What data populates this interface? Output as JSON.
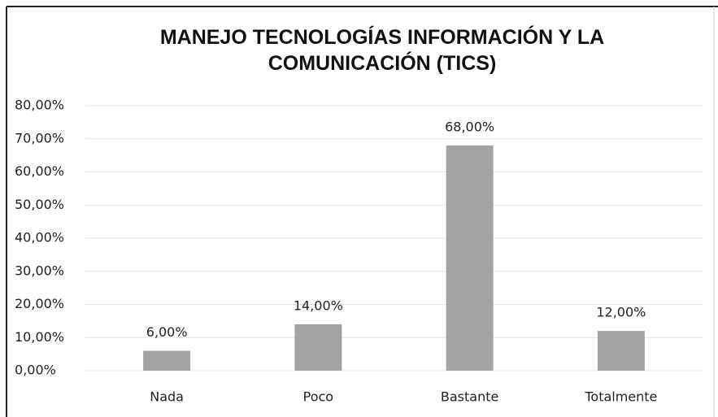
{
  "chart_data": {
    "type": "bar",
    "title": "MANEJO TECNOLOGÍAS INFORMACIÓN Y LA COMUNICACIÓN (TICS)",
    "categories": [
      "Nada",
      "Poco",
      "Bastante",
      "Totalmente"
    ],
    "values": [
      6,
      14,
      68,
      12
    ],
    "value_labels": [
      "6,00%",
      "14,00%",
      "68,00%",
      "12,00%"
    ],
    "color": "#a3a3a3",
    "ylim": [
      0,
      80
    ],
    "yticks": [
      {
        "value": 0,
        "label": "0,00%"
      },
      {
        "value": 10,
        "label": "10,00%"
      },
      {
        "value": 20,
        "label": "20,00%"
      },
      {
        "value": 30,
        "label": "30,00%"
      },
      {
        "value": 40,
        "label": "40,00%"
      },
      {
        "value": 50,
        "label": "50,00%"
      },
      {
        "value": 60,
        "label": "60,00%"
      },
      {
        "value": 70,
        "label": "70,00%"
      },
      {
        "value": 80,
        "label": "80,00%"
      }
    ],
    "grid": true
  }
}
